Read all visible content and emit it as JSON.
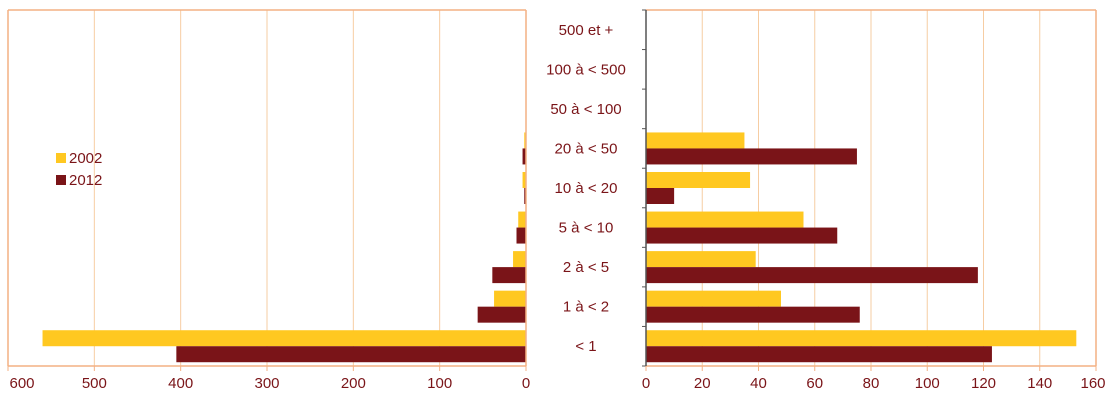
{
  "chart_data": [
    {
      "type": "bar",
      "orientation": "horizontal-reversed",
      "categories": [
        "< 1",
        "1 à < 2",
        "2 à < 5",
        "5 à < 10",
        "10 à < 20",
        "20 à < 50",
        "50 à < 100",
        "100 à < 500",
        "500 et +"
      ],
      "series": [
        {
          "name": "2002",
          "color": "#ffc821",
          "values": [
            560,
            37,
            15,
            9,
            4,
            2,
            0,
            0,
            0
          ]
        },
        {
          "name": "2012",
          "color": "#7a1418",
          "values": [
            405,
            56,
            39,
            11,
            2,
            4,
            0,
            0,
            0
          ]
        }
      ],
      "xlim": [
        600,
        0
      ],
      "xticks": [
        "600",
        "500",
        "400",
        "300",
        "200",
        "100",
        "0"
      ],
      "grid": true,
      "legend": "left"
    },
    {
      "type": "bar",
      "orientation": "horizontal",
      "categories": [
        "< 1",
        "1 à < 2",
        "2 à < 5",
        "5 à < 10",
        "10 à < 20",
        "20 à < 50",
        "50 à < 100",
        "100 à < 500",
        "500 et +"
      ],
      "series": [
        {
          "name": "2002",
          "color": "#ffc821",
          "values": [
            153,
            48,
            39,
            56,
            37,
            35,
            0,
            0,
            0
          ]
        },
        {
          "name": "2012",
          "color": "#7a1418",
          "values": [
            123,
            76,
            118,
            68,
            10,
            75,
            0,
            0,
            0
          ]
        }
      ],
      "xlim": [
        0,
        160
      ],
      "xticks": [
        "0",
        "20",
        "40",
        "60",
        "80",
        "100",
        "120",
        "140",
        "160"
      ],
      "grid": true
    }
  ],
  "legend": {
    "items": [
      {
        "label": "2002",
        "color": "#ffc821"
      },
      {
        "label": "2012",
        "color": "#7a1418"
      }
    ]
  },
  "colors": {
    "grid": "#f6cda3",
    "axis": "#f4b183",
    "text": "#7a1418"
  }
}
